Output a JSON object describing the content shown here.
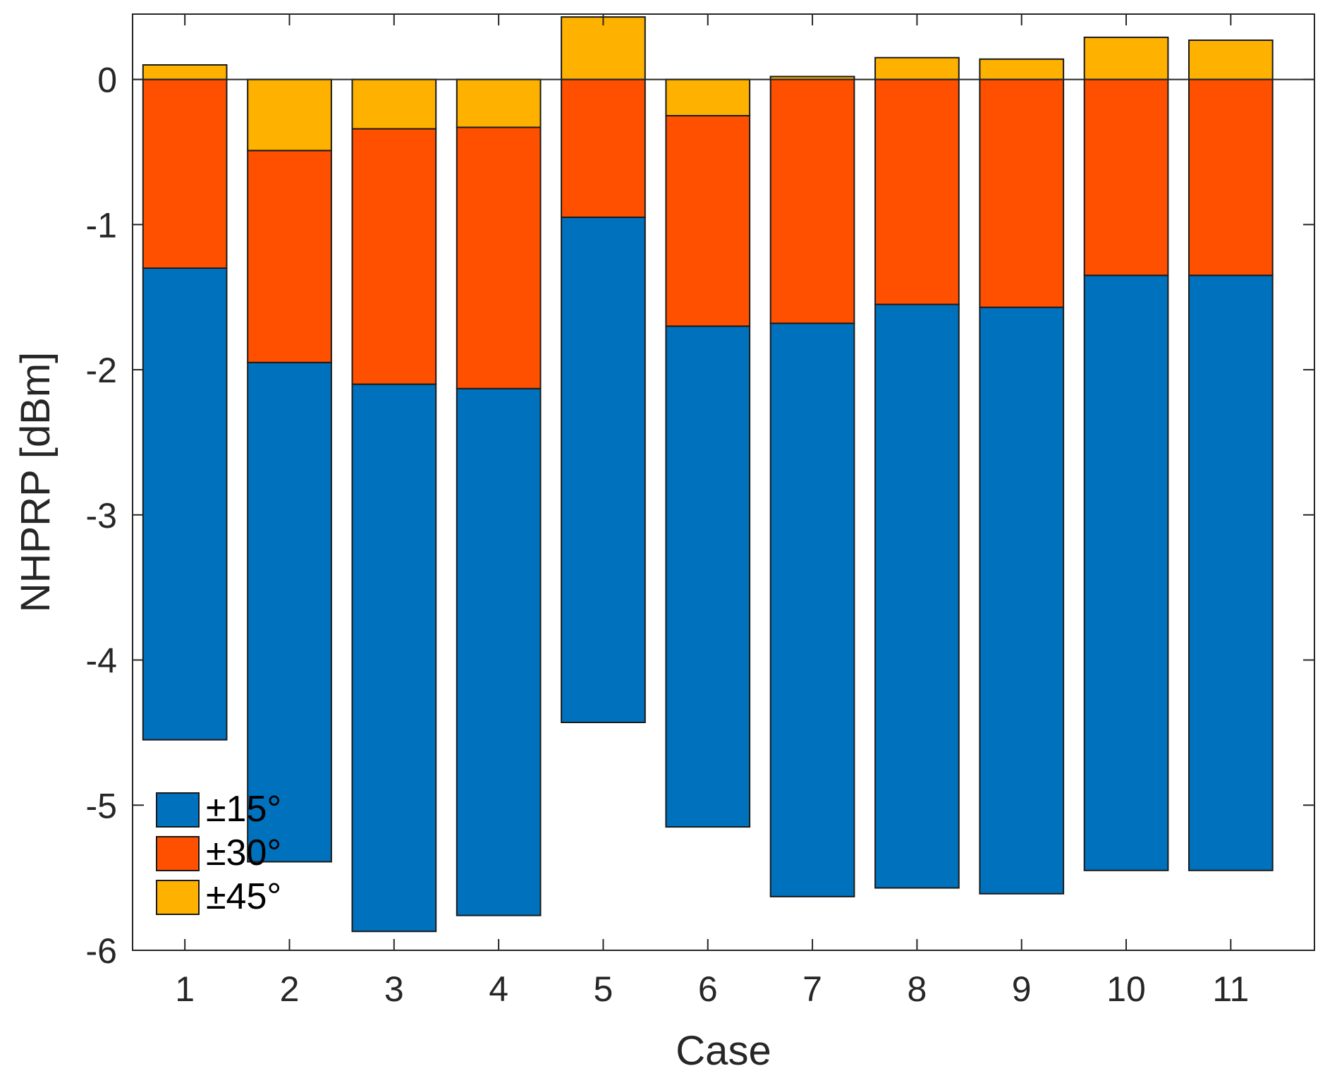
{
  "chart_data": {
    "type": "bar",
    "mode": "stacked-from-zero-overlap",
    "xlabel": "Case",
    "ylabel": "NHPRP [dBm]",
    "categories": [
      "1",
      "2",
      "3",
      "4",
      "5",
      "6",
      "7",
      "8",
      "9",
      "10",
      "11"
    ],
    "ylim": [
      -6,
      0.45
    ],
    "yticks": [
      0,
      -1,
      -2,
      -3,
      -4,
      -5,
      -6
    ],
    "grid": false,
    "zero_line": true,
    "legend_position": "bottom-left",
    "series": [
      {
        "name": "±15°",
        "color": "#0072BD",
        "low": [
          -4.55,
          -5.39,
          -5.87,
          -5.76,
          -4.43,
          -5.15,
          -5.63,
          -5.57,
          -5.61,
          -5.45,
          -5.45
        ],
        "high": [
          -1.3,
          -1.95,
          -2.1,
          -2.13,
          -0.95,
          -1.7,
          -1.68,
          -1.55,
          -1.57,
          -1.35,
          -1.35
        ]
      },
      {
        "name": "±30°",
        "color": "#FF5000",
        "low": [
          -1.3,
          -1.95,
          -2.1,
          -2.13,
          -0.95,
          -1.7,
          -1.68,
          -1.55,
          -1.57,
          -1.35,
          -1.35
        ],
        "high": [
          0,
          -0.49,
          -0.34,
          -0.33,
          0,
          -0.25,
          0.02,
          0,
          0,
          0,
          0
        ]
      },
      {
        "name": "±45°",
        "color": "#FFB100",
        "low": [
          0,
          -0.49,
          -0.34,
          -0.33,
          0,
          -0.25,
          0,
          0,
          0,
          0,
          0
        ],
        "high": [
          0.1,
          0,
          0,
          0,
          0.43,
          0,
          0.02,
          0.15,
          0.14,
          0.29,
          0.27
        ]
      }
    ]
  }
}
